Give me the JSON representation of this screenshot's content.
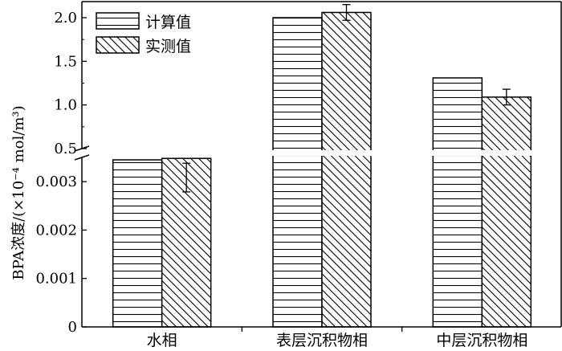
{
  "chart_data": {
    "type": "bar",
    "title": "",
    "xlabel": "",
    "ylabel": "BPA浓度/(×10⁻⁴ mol/m³)",
    "categories": [
      "水相",
      "表层沉积物相",
      "中层沉积物相"
    ],
    "series": [
      {
        "name": "计算值",
        "pattern": "horizontal-stripes",
        "values": [
          0.00345,
          2.0,
          1.31
        ]
      },
      {
        "name": "实测值",
        "pattern": "diagonal-hatch",
        "values": [
          0.00348,
          2.06,
          1.09
        ],
        "errors": [
          0.0001,
          0.09,
          0.09
        ]
      }
    ],
    "y_axis_break": {
      "lower_range": [
        0,
        0.0035
      ],
      "upper_range": [
        0.5,
        2.0
      ],
      "lower_ticks": [
        "0",
        "0.001",
        "0.002",
        "0.003"
      ],
      "upper_ticks": [
        "0.5",
        "1.0",
        "1.5",
        "2.0"
      ]
    },
    "legend_position": "top-left",
    "grid": false
  }
}
